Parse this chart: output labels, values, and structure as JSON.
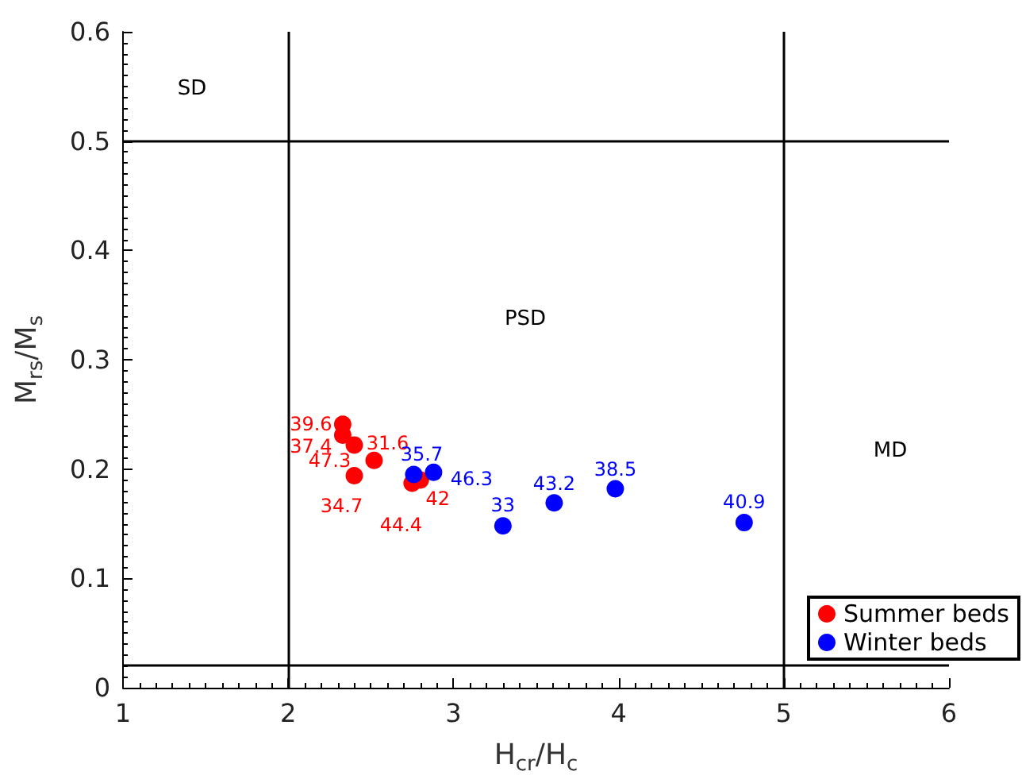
{
  "chart_data": {
    "type": "scatter",
    "xlabel": "H$_{cr}$/H$_{c}$",
    "ylabel": "M$_{rs}$/M$_{s}$",
    "xlim": [
      1,
      6
    ],
    "xticks": [
      1,
      2,
      3,
      4,
      5,
      6
    ],
    "ylim": [
      0,
      0.6
    ],
    "yticks": [
      0,
      0.1,
      0.2,
      0.3,
      0.4,
      0.5,
      0.6
    ],
    "grid": false,
    "legend": "bottom right",
    "marker": "circle",
    "series": [
      {
        "name": "Summer beds",
        "color": "#ff0000",
        "x": [
          2.33,
          2.33,
          2.4,
          2.52,
          2.4,
          2.75,
          2.8
        ],
        "values": [
          0.241,
          0.231,
          0.222,
          0.208,
          0.194,
          0.187,
          0.19
        ]
      },
      {
        "name": "Winter beds",
        "color": "#0000ff",
        "x": [
          2.76,
          2.88,
          3.3,
          3.61,
          3.98,
          4.76
        ],
        "values": [
          0.195,
          0.197,
          0.148,
          0.169,
          0.182,
          0.151
        ]
      }
    ],
    "ref_lines": [
      {
        "axis": "x",
        "value": 2,
        "color": "#000000"
      },
      {
        "axis": "x",
        "value": 5,
        "color": "#000000"
      },
      {
        "axis": "y",
        "value": 0.5,
        "color": "#000000"
      },
      {
        "axis": "y",
        "value": 0.02,
        "color": "#000000"
      }
    ],
    "annotations": [
      "SD",
      "PSD",
      "MD",
      {
        "text": "39.6",
        "x": 2.33,
        "y": 0.241
      },
      {
        "text": "37.4",
        "x": 2.33,
        "y": 0.231
      },
      {
        "text": "31.6",
        "x": 2.4,
        "y": 0.222
      },
      {
        "text": "47.3",
        "x": 2.52,
        "y": 0.208
      },
      {
        "text": "34.7",
        "x": 2.4,
        "y": 0.194
      },
      {
        "text": "44.4",
        "x": 2.75,
        "y": 0.187
      },
      {
        "text": "42",
        "x": 2.8,
        "y": 0.19
      },
      {
        "text": "35.7",
        "x": 2.76,
        "y": 0.195
      },
      {
        "text": "46.3",
        "x": 2.88,
        "y": 0.197
      },
      {
        "text": "33",
        "x": 3.3,
        "y": 0.148
      },
      {
        "text": "43.2",
        "x": 3.61,
        "y": 0.169
      },
      {
        "text": "38.5",
        "x": 3.98,
        "y": 0.182
      },
      {
        "text": "40.9",
        "x": 4.76,
        "y": 0.151
      }
    ]
  }
}
